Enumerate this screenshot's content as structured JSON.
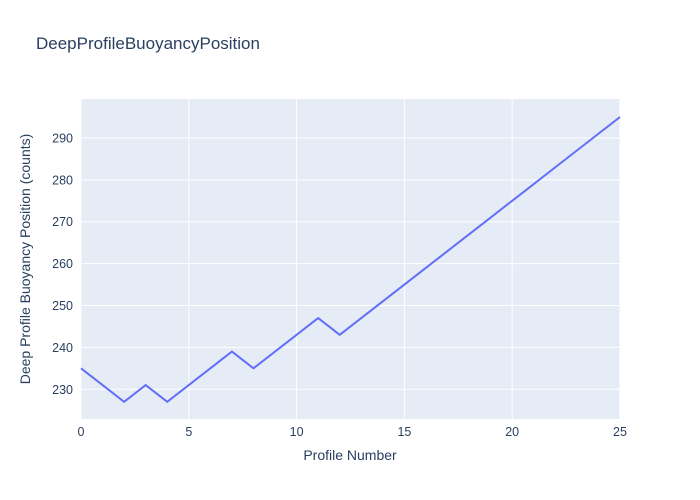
{
  "chart_data": {
    "type": "line",
    "title": "DeepProfileBuoyancyPosition",
    "xlabel": "Profile Number",
    "ylabel": "Deep Profile Buoyancy Position (counts)",
    "x": [
      0,
      1,
      2,
      3,
      4,
      5,
      6,
      7,
      8,
      9,
      10,
      11,
      12,
      13,
      14,
      15,
      16,
      17,
      18,
      19,
      20,
      21,
      22,
      23,
      24,
      25
    ],
    "y": [
      235,
      231,
      227,
      231,
      227,
      231,
      235,
      239,
      235,
      239,
      243,
      247,
      243,
      247,
      251,
      255,
      259,
      263,
      267,
      271,
      275,
      279,
      283,
      287,
      291,
      295
    ],
    "xlim": [
      0,
      25
    ],
    "ylim": [
      222.9,
      299.3
    ],
    "xticks": [
      0,
      5,
      10,
      15,
      20,
      25
    ],
    "yticks": [
      230,
      240,
      250,
      260,
      270,
      280,
      290
    ],
    "grid": true,
    "legend": false,
    "colors": {
      "line": "#636efa",
      "plot_background": "#e5ecf6",
      "grid": "#ffffff",
      "text": "#2a3f5f",
      "page_background": "#ffffff"
    }
  }
}
